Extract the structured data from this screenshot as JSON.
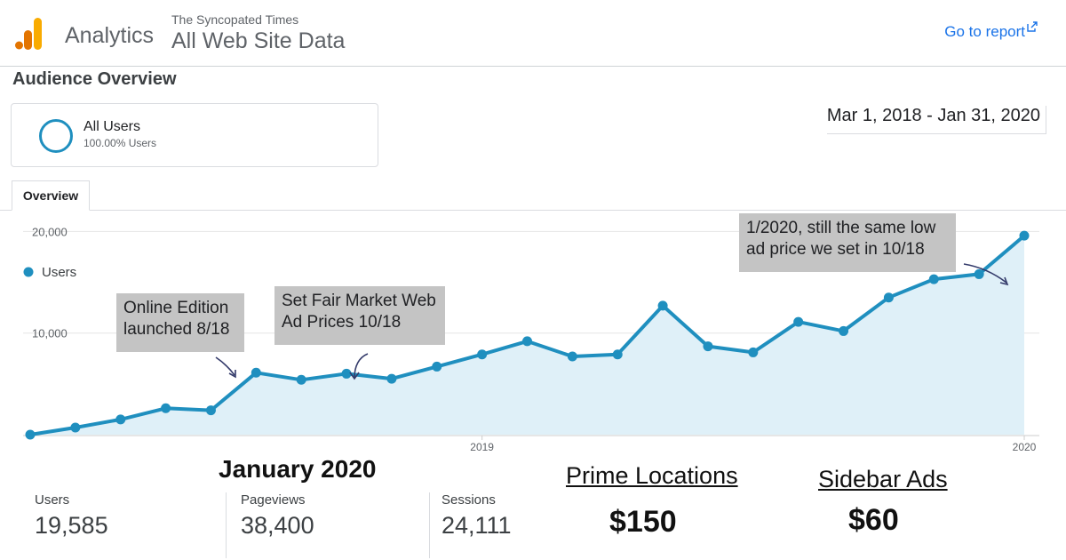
{
  "header": {
    "product": "Analytics",
    "account": "The Syncopated Times",
    "view": "All Web Site Data",
    "go_to_report": "Go to report",
    "logo_icon": "analytics-bars-icon",
    "link_icon": "external-link-icon"
  },
  "audience": {
    "title": "Audience Overview",
    "segment_name": "All Users",
    "segment_pct": "100.00% Users",
    "date_range": "Mar 1, 2018 - Jan 31, 2020"
  },
  "tabs": {
    "overview": "Overview"
  },
  "chart_data": {
    "type": "line",
    "legend": "Users",
    "series": [
      {
        "name": "Users",
        "values": [
          0,
          700,
          1500,
          2600,
          2400,
          6100,
          5400,
          6000,
          5500,
          6700,
          7900,
          9200,
          7700,
          7900,
          12700,
          8700,
          8100,
          11100,
          10200,
          13500,
          15300,
          15800,
          19585
        ],
        "color": "#1f8fbf"
      }
    ],
    "x_ticks": [
      {
        "index": 10,
        "label": "2019"
      },
      {
        "index": 22,
        "label": "2020"
      }
    ],
    "y_ticks": [
      10000,
      20000
    ],
    "y_tick_labels": [
      "10,000",
      "20,000"
    ],
    "ylim": [
      0,
      21000
    ],
    "grid": true,
    "annotations": [
      {
        "text": "Online Edition launched 8/18",
        "line1": "Online Edition",
        "line2": "launched 8/18"
      },
      {
        "text": "Set Fair Market Web Ad Prices 10/18",
        "line1": "Set Fair Market Web",
        "line2": "Ad Prices 10/18"
      },
      {
        "text": "1/2020, still the same low ad price we set in 10/18",
        "line1": "1/2020, still the same low",
        "line2": "ad price we set in 10/18"
      }
    ]
  },
  "summary": {
    "month_title": "January 2020",
    "metrics": [
      {
        "label": "Users",
        "value": "19,585"
      },
      {
        "label": "Pageviews",
        "value": "38,400"
      },
      {
        "label": "Sessions",
        "value": "24,111"
      }
    ],
    "prices": [
      {
        "label": "Prime Locations",
        "price": "$150"
      },
      {
        "label": "Sidebar Ads",
        "price": "$60"
      }
    ]
  }
}
